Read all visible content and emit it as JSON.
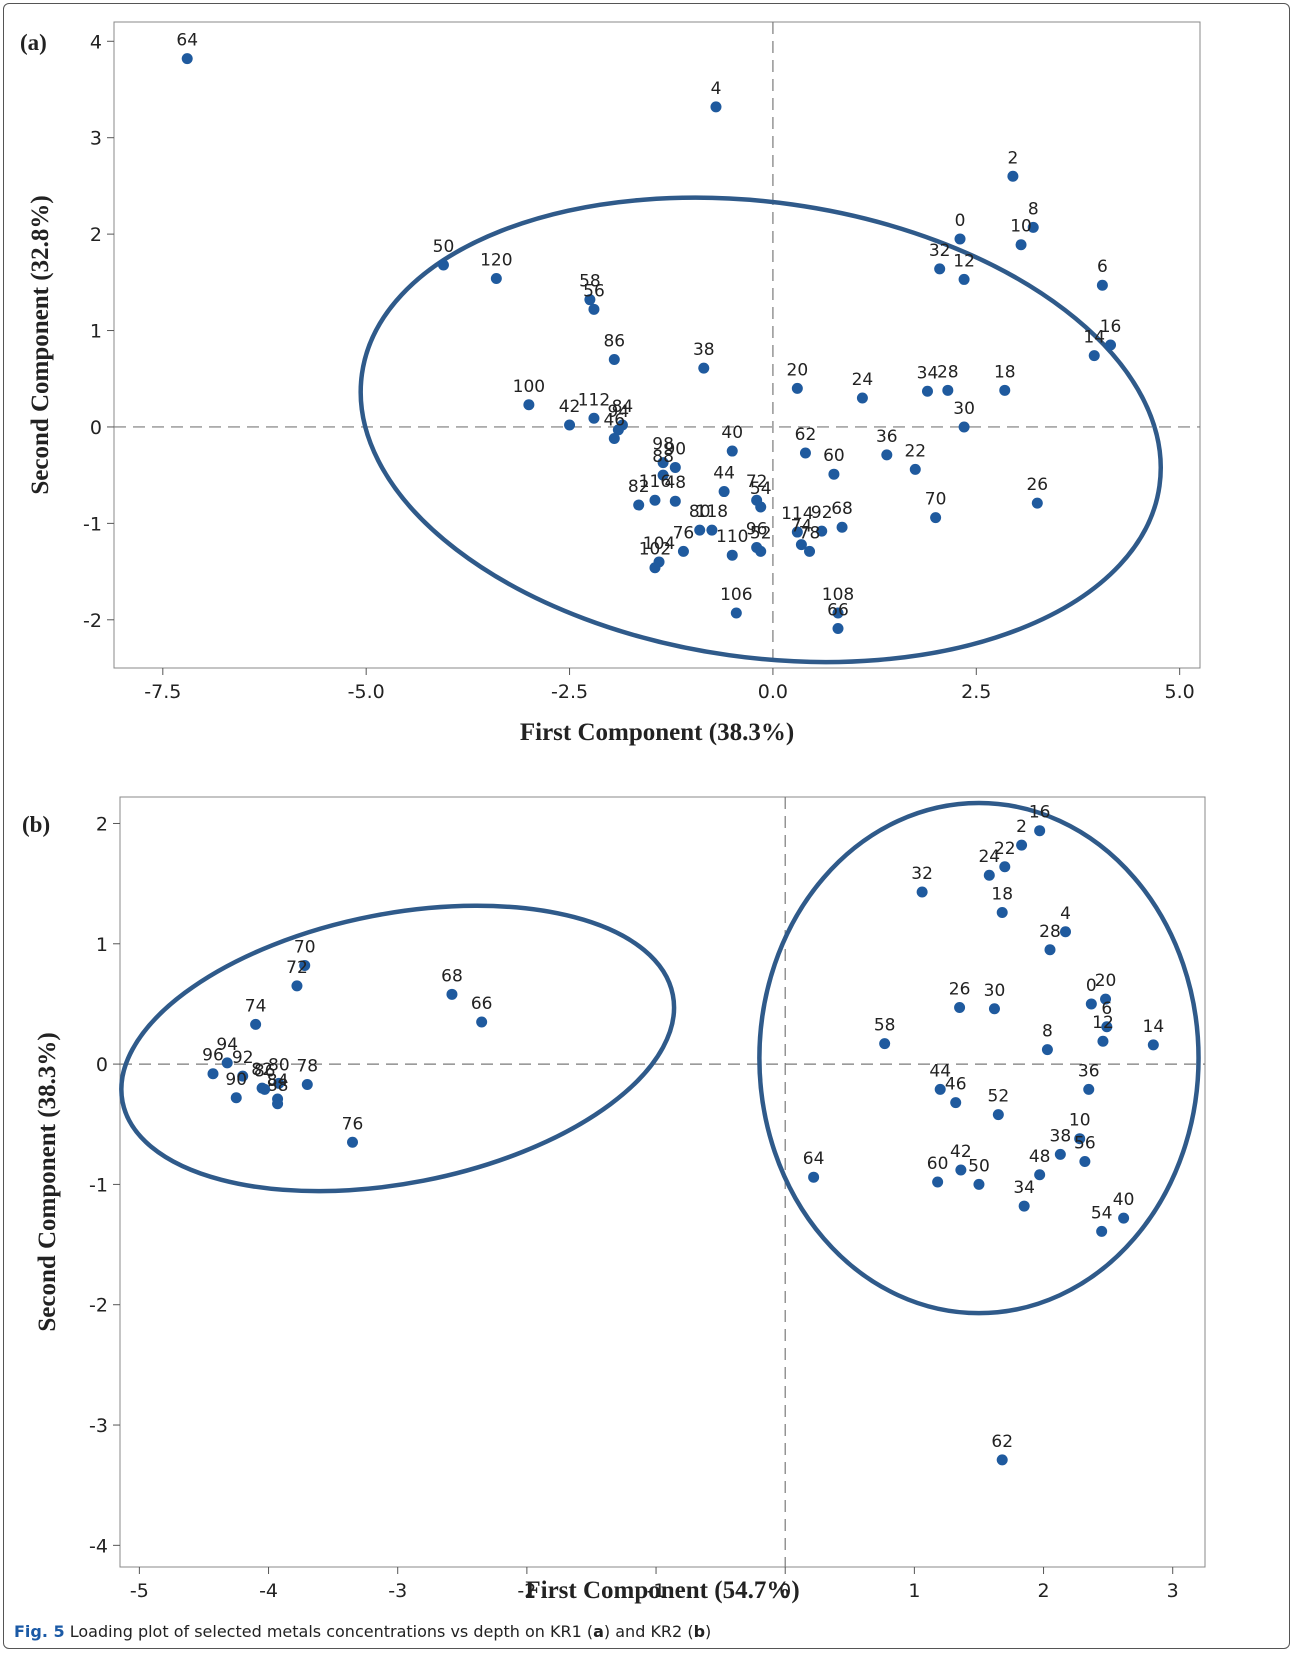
{
  "caption": {
    "label": "Fig. 5",
    "t1": " Loading plot of selected metals concentrations vs depth on KR1 (",
    "b1": "a",
    "t2": ") and KR2 (",
    "b2": "b",
    "t3": ")"
  },
  "colors": {
    "point": "#1f5a9e",
    "ellipse": "#2f5a8a",
    "refline": "#7a7a7a",
    "axis": "#555555",
    "text": "#222222"
  },
  "chart_data": [
    {
      "type": "scatter",
      "panel_label": "(a)",
      "xlabel": "First Component (38.3%)",
      "ylabel": "Second Component (32.8%)",
      "xlim": [
        -8.1,
        5.25
      ],
      "ylim": [
        -2.5,
        4.2
      ],
      "xticks": [
        "-7.5",
        "-5.0",
        "-2.5",
        "0.0",
        "2.5",
        "5.0"
      ],
      "yticks": [
        "-2",
        "-1",
        "0",
        "1",
        "2",
        "3",
        "4"
      ],
      "reference_lines": {
        "x": 0,
        "y": 0,
        "style": "dashed"
      },
      "grid": false,
      "points": [
        {
          "label": "64",
          "x": -7.2,
          "y": 3.82
        },
        {
          "label": "4",
          "x": -0.7,
          "y": 3.32
        },
        {
          "label": "2",
          "x": 2.95,
          "y": 2.6
        },
        {
          "label": "8",
          "x": 3.2,
          "y": 2.07
        },
        {
          "label": "0",
          "x": 2.3,
          "y": 1.95
        },
        {
          "label": "10",
          "x": 3.05,
          "y": 1.89
        },
        {
          "label": "32",
          "x": 2.05,
          "y": 1.64
        },
        {
          "label": "12",
          "x": 2.35,
          "y": 1.53
        },
        {
          "label": "6",
          "x": 4.05,
          "y": 1.47
        },
        {
          "label": "16",
          "x": 4.15,
          "y": 0.85
        },
        {
          "label": "14",
          "x": 3.95,
          "y": 0.74
        },
        {
          "label": "50",
          "x": -4.05,
          "y": 1.68
        },
        {
          "label": "120",
          "x": -3.4,
          "y": 1.54
        },
        {
          "label": "58",
          "x": -2.25,
          "y": 1.32
        },
        {
          "label": "56",
          "x": -2.2,
          "y": 1.22
        },
        {
          "label": "86",
          "x": -1.95,
          "y": 0.7
        },
        {
          "label": "38",
          "x": -0.85,
          "y": 0.61
        },
        {
          "label": "20",
          "x": 0.3,
          "y": 0.4
        },
        {
          "label": "24",
          "x": 1.1,
          "y": 0.3
        },
        {
          "label": "34",
          "x": 1.9,
          "y": 0.37
        },
        {
          "label": "28",
          "x": 2.15,
          "y": 0.38
        },
        {
          "label": "18",
          "x": 2.85,
          "y": 0.38
        },
        {
          "label": "30",
          "x": 2.35,
          "y": 0.0
        },
        {
          "label": "100",
          "x": -3.0,
          "y": 0.23
        },
        {
          "label": "112",
          "x": -2.2,
          "y": 0.09
        },
        {
          "label": "42",
          "x": -2.5,
          "y": 0.02
        },
        {
          "label": "84",
          "x": -1.85,
          "y": 0.02
        },
        {
          "label": "94",
          "x": -1.9,
          "y": -0.03
        },
        {
          "label": "46",
          "x": -1.95,
          "y": -0.12
        },
        {
          "label": "40",
          "x": -0.5,
          "y": -0.25
        },
        {
          "label": "62",
          "x": 0.4,
          "y": -0.27
        },
        {
          "label": "36",
          "x": 1.4,
          "y": -0.29
        },
        {
          "label": "22",
          "x": 1.75,
          "y": -0.44
        },
        {
          "label": "60",
          "x": 0.75,
          "y": -0.49
        },
        {
          "label": "98",
          "x": -1.35,
          "y": -0.37
        },
        {
          "label": "90",
          "x": -1.2,
          "y": -0.42
        },
        {
          "label": "88",
          "x": -1.35,
          "y": -0.5
        },
        {
          "label": "44",
          "x": -0.6,
          "y": -0.67
        },
        {
          "label": "72",
          "x": -0.2,
          "y": -0.76
        },
        {
          "label": "54",
          "x": -0.15,
          "y": -0.83
        },
        {
          "label": "116",
          "x": -1.45,
          "y": -0.76
        },
        {
          "label": "48",
          "x": -1.2,
          "y": -0.77
        },
        {
          "label": "82",
          "x": -1.65,
          "y": -0.81
        },
        {
          "label": "26",
          "x": 3.25,
          "y": -0.79
        },
        {
          "label": "70",
          "x": 2.0,
          "y": -0.94
        },
        {
          "label": "80",
          "x": -0.9,
          "y": -1.07
        },
        {
          "label": "118",
          "x": -0.75,
          "y": -1.07
        },
        {
          "label": "114",
          "x": 0.3,
          "y": -1.09
        },
        {
          "label": "68",
          "x": 0.85,
          "y": -1.04
        },
        {
          "label": "76",
          "x": -1.1,
          "y": -1.29
        },
        {
          "label": "96",
          "x": -0.2,
          "y": -1.25
        },
        {
          "label": "74",
          "x": 0.35,
          "y": -1.22
        },
        {
          "label": "92",
          "x": 0.6,
          "y": -1.08
        },
        {
          "label": "104",
          "x": -1.4,
          "y": -1.4
        },
        {
          "label": "102",
          "x": -1.45,
          "y": -1.46
        },
        {
          "label": "110",
          "x": -0.5,
          "y": -1.33
        },
        {
          "label": "52",
          "x": -0.15,
          "y": -1.29
        },
        {
          "label": "78",
          "x": 0.45,
          "y": -1.29
        },
        {
          "label": "106",
          "x": -0.45,
          "y": -1.93
        },
        {
          "label": "108",
          "x": 0.8,
          "y": -1.93
        },
        {
          "label": "66",
          "x": 0.8,
          "y": -2.09
        }
      ],
      "ellipses": [
        {
          "cx": -0.15,
          "cy": -0.03,
          "rx": 4.95,
          "ry": 2.36,
          "rotation_deg": 8
        }
      ]
    },
    {
      "type": "scatter",
      "panel_label": "(b)",
      "xlabel": "First Component (54.7%)",
      "ylabel": "Second Component (38.3%)",
      "xlim": [
        -5.15,
        3.25
      ],
      "ylim": [
        -4.18,
        2.22
      ],
      "xticks": [
        "-5",
        "-4",
        "-3",
        "-2",
        "-1",
        "0",
        "1",
        "2",
        "3"
      ],
      "yticks": [
        "-4",
        "-3",
        "-2",
        "-1",
        "0",
        "1",
        "2"
      ],
      "reference_lines": {
        "x": 0,
        "y": 0,
        "style": "dashed"
      },
      "grid": false,
      "points": [
        {
          "label": "16",
          "x": 1.97,
          "y": 1.94
        },
        {
          "label": "2",
          "x": 1.83,
          "y": 1.82
        },
        {
          "label": "22",
          "x": 1.7,
          "y": 1.64
        },
        {
          "label": "24",
          "x": 1.58,
          "y": 1.57
        },
        {
          "label": "32",
          "x": 1.06,
          "y": 1.43
        },
        {
          "label": "18",
          "x": 1.68,
          "y": 1.26
        },
        {
          "label": "4",
          "x": 2.17,
          "y": 1.1
        },
        {
          "label": "28",
          "x": 2.05,
          "y": 0.95
        },
        {
          "label": "70",
          "x": -3.72,
          "y": 0.82
        },
        {
          "label": "72",
          "x": -3.78,
          "y": 0.65
        },
        {
          "label": "68",
          "x": -2.58,
          "y": 0.58
        },
        {
          "label": "66",
          "x": -2.35,
          "y": 0.35
        },
        {
          "label": "74",
          "x": -4.1,
          "y": 0.33
        },
        {
          "label": "26",
          "x": 1.35,
          "y": 0.47
        },
        {
          "label": "30",
          "x": 1.62,
          "y": 0.46
        },
        {
          "label": "20",
          "x": 2.48,
          "y": 0.54
        },
        {
          "label": "0",
          "x": 2.37,
          "y": 0.5
        },
        {
          "label": "6",
          "x": 2.49,
          "y": 0.31
        },
        {
          "label": "12",
          "x": 2.46,
          "y": 0.19
        },
        {
          "label": "14",
          "x": 2.85,
          "y": 0.16
        },
        {
          "label": "58",
          "x": 0.77,
          "y": 0.17
        },
        {
          "label": "8",
          "x": 2.03,
          "y": 0.12
        },
        {
          "label": "94",
          "x": -4.32,
          "y": 0.01
        },
        {
          "label": "92",
          "x": -4.2,
          "y": -0.1
        },
        {
          "label": "96",
          "x": -4.43,
          "y": -0.08
        },
        {
          "label": "82",
          "x": -4.05,
          "y": -0.2
        },
        {
          "label": "80",
          "x": -3.92,
          "y": -0.16
        },
        {
          "label": "78",
          "x": -3.7,
          "y": -0.17
        },
        {
          "label": "84",
          "x": -3.93,
          "y": -0.29
        },
        {
          "label": "88",
          "x": -3.93,
          "y": -0.33
        },
        {
          "label": "90",
          "x": -4.25,
          "y": -0.28
        },
        {
          "label": "86",
          "x": -4.03,
          "y": -0.21
        },
        {
          "label": "76",
          "x": -3.35,
          "y": -0.65
        },
        {
          "label": "44",
          "x": 1.2,
          "y": -0.21
        },
        {
          "label": "46",
          "x": 1.32,
          "y": -0.32
        },
        {
          "label": "36",
          "x": 2.35,
          "y": -0.21
        },
        {
          "label": "52",
          "x": 1.65,
          "y": -0.42
        },
        {
          "label": "10",
          "x": 2.28,
          "y": -0.62
        },
        {
          "label": "56",
          "x": 2.32,
          "y": -0.81
        },
        {
          "label": "38",
          "x": 2.13,
          "y": -0.75
        },
        {
          "label": "48",
          "x": 1.97,
          "y": -0.92
        },
        {
          "label": "64",
          "x": 0.22,
          "y": -0.94
        },
        {
          "label": "60",
          "x": 1.18,
          "y": -0.98
        },
        {
          "label": "42",
          "x": 1.36,
          "y": -0.88
        },
        {
          "label": "50",
          "x": 1.5,
          "y": -1.0
        },
        {
          "label": "34",
          "x": 1.85,
          "y": -1.18
        },
        {
          "label": "40",
          "x": 2.62,
          "y": -1.28
        },
        {
          "label": "54",
          "x": 2.45,
          "y": -1.39
        },
        {
          "label": "62",
          "x": 1.68,
          "y": -3.29
        }
      ],
      "ellipses": [
        {
          "cx": -3.0,
          "cy": 0.13,
          "rx": 2.17,
          "ry": 1.12,
          "rotation_deg": -11
        },
        {
          "cx": 1.5,
          "cy": 0.05,
          "rx": 1.7,
          "ry": 2.12,
          "rotation_deg": 0
        }
      ]
    }
  ]
}
